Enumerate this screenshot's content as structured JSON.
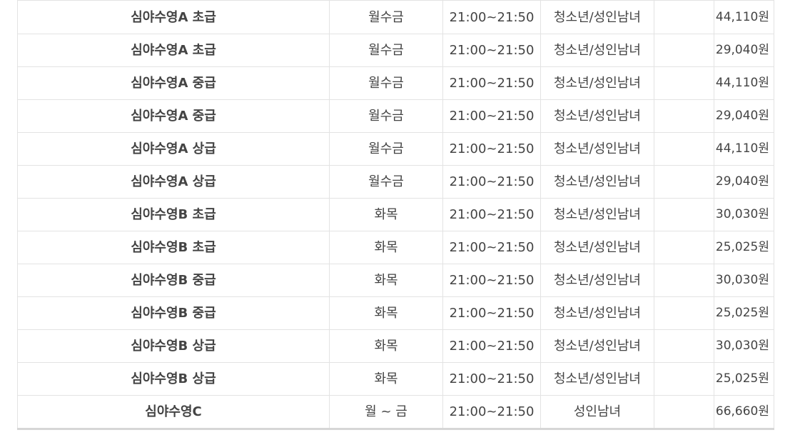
{
  "rows": [
    {
      "name": "심야수영A 초급",
      "days": "월수금",
      "time": "21:00~21:50",
      "target": "청소년/성인남녀",
      "price": "44,110원"
    },
    {
      "name": "심야수영A 초급",
      "days": "월수금",
      "time": "21:00~21:50",
      "target": "청소년/성인남녀",
      "price": "29,040원"
    },
    {
      "name": "심야수영A 중급",
      "days": "월수금",
      "time": "21:00~21:50",
      "target": "청소년/성인남녀",
      "price": "44,110원"
    },
    {
      "name": "심야수영A 중급",
      "days": "월수금",
      "time": "21:00~21:50",
      "target": "청소년/성인남녀",
      "price": "29,040원"
    },
    {
      "name": "심야수영A 상급",
      "days": "월수금",
      "time": "21:00~21:50",
      "target": "청소년/성인남녀",
      "price": "44,110원"
    },
    {
      "name": "심야수영A 상급",
      "days": "월수금",
      "time": "21:00~21:50",
      "target": "청소년/성인남녀",
      "price": "29,040원"
    },
    {
      "name": "심야수영B 초급",
      "days": "화목",
      "time": "21:00~21:50",
      "target": "청소년/성인남녀",
      "price": "30,030원"
    },
    {
      "name": "심야수영B 초급",
      "days": "화목",
      "time": "21:00~21:50",
      "target": "청소년/성인남녀",
      "price": "25,025원"
    },
    {
      "name": "심야수영B 중급",
      "days": "화목",
      "time": "21:00~21:50",
      "target": "청소년/성인남녀",
      "price": "30,030원"
    },
    {
      "name": "심야수영B 중급",
      "days": "화목",
      "time": "21:00~21:50",
      "target": "청소년/성인남녀",
      "price": "25,025원"
    },
    {
      "name": "심야수영B 상급",
      "days": "화목",
      "time": "21:00~21:50",
      "target": "청소년/성인남녀",
      "price": "30,030원"
    },
    {
      "name": "심야수영B 상급",
      "days": "화목",
      "time": "21:00~21:50",
      "target": "청소년/성인남녀",
      "price": "25,025원"
    },
    {
      "name": "심야수영C",
      "days": "월 ~ 금",
      "time": "21:00~21:50",
      "target": "성인남녀",
      "price": "66,660원"
    }
  ]
}
